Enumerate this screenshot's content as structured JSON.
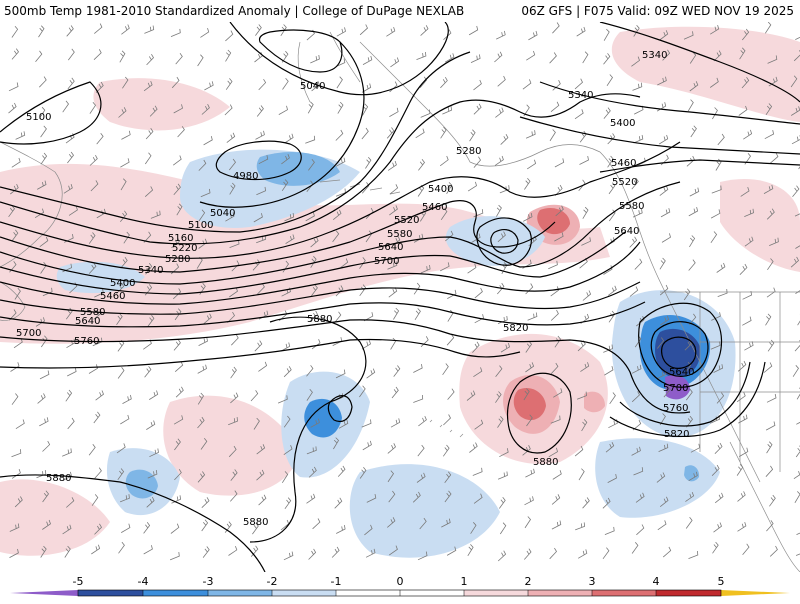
{
  "header": {
    "left": "500mb Temp 1981-2010 Standardized Anomaly | College of DuPage NEXLAB",
    "right": "06Z GFS | F075 Valid: 09Z WED NOV 19 2025"
  },
  "colors": {
    "anom_neg5": "#8e5cc9",
    "anom_neg4": "#2d4f9e",
    "anom_neg3": "#3d8fdc",
    "anom_neg2": "#7fb6e6",
    "anom_neg1": "#c9ddf2",
    "anom_pos1": "#f6d9dc",
    "anom_pos2": "#eeb0b4",
    "anom_pos3": "#dd6f72",
    "anom_pos4": "#c02a2e",
    "anom_pos5": "#7a0d12",
    "anom_pos6": "#f0c020"
  },
  "contour_labels": [
    "5100",
    "5040",
    "4980",
    "5040",
    "5100",
    "5160",
    "5220",
    "5280",
    "5340",
    "5400",
    "5460",
    "5580",
    "5640",
    "5700",
    "5760",
    "5880",
    "5280",
    "5400",
    "5460",
    "5520",
    "5580",
    "5640",
    "5700",
    "5820",
    "5340",
    "5400",
    "5340",
    "5460",
    "5520",
    "5580",
    "5640",
    "5640",
    "5700",
    "5760",
    "5820",
    "5880",
    "5880",
    "5880"
  ],
  "colorbar": {
    "ticks": [
      "-5",
      "-4",
      "-3",
      "-2",
      "-1",
      "0",
      "1",
      "2",
      "3",
      "4",
      "5"
    ]
  }
}
